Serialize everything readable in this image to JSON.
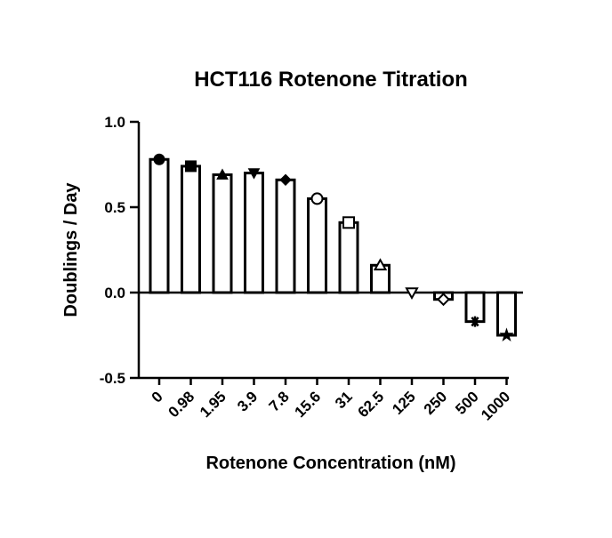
{
  "chart_data": {
    "type": "bar",
    "title": "HCT116 Rotenone Titration",
    "xlabel": "Rotenone Concentration (nM)",
    "ylabel": "Doublings / Day",
    "ylim": [
      -0.5,
      1.0
    ],
    "yticks": [
      -0.5,
      0.0,
      0.5,
      1.0
    ],
    "ytick_labels": [
      "-0.5",
      "0.0",
      "0.5",
      "1.0"
    ],
    "categories": [
      "0",
      "0.98",
      "1.95",
      "3.9",
      "7.8",
      "15.6",
      "31",
      "62.5",
      "125",
      "250",
      "500",
      "1000"
    ],
    "values": [
      0.78,
      0.74,
      0.69,
      0.7,
      0.66,
      0.55,
      0.41,
      0.16,
      0.0,
      -0.04,
      -0.17,
      -0.25
    ],
    "markers": [
      "circle",
      "square",
      "triangle-up",
      "triangle-down",
      "diamond",
      "circle-open",
      "square-open",
      "triangle-up-open",
      "triangle-down-open",
      "diamond-open",
      "asterisk",
      "star"
    ],
    "grid": false,
    "legend": "none"
  }
}
